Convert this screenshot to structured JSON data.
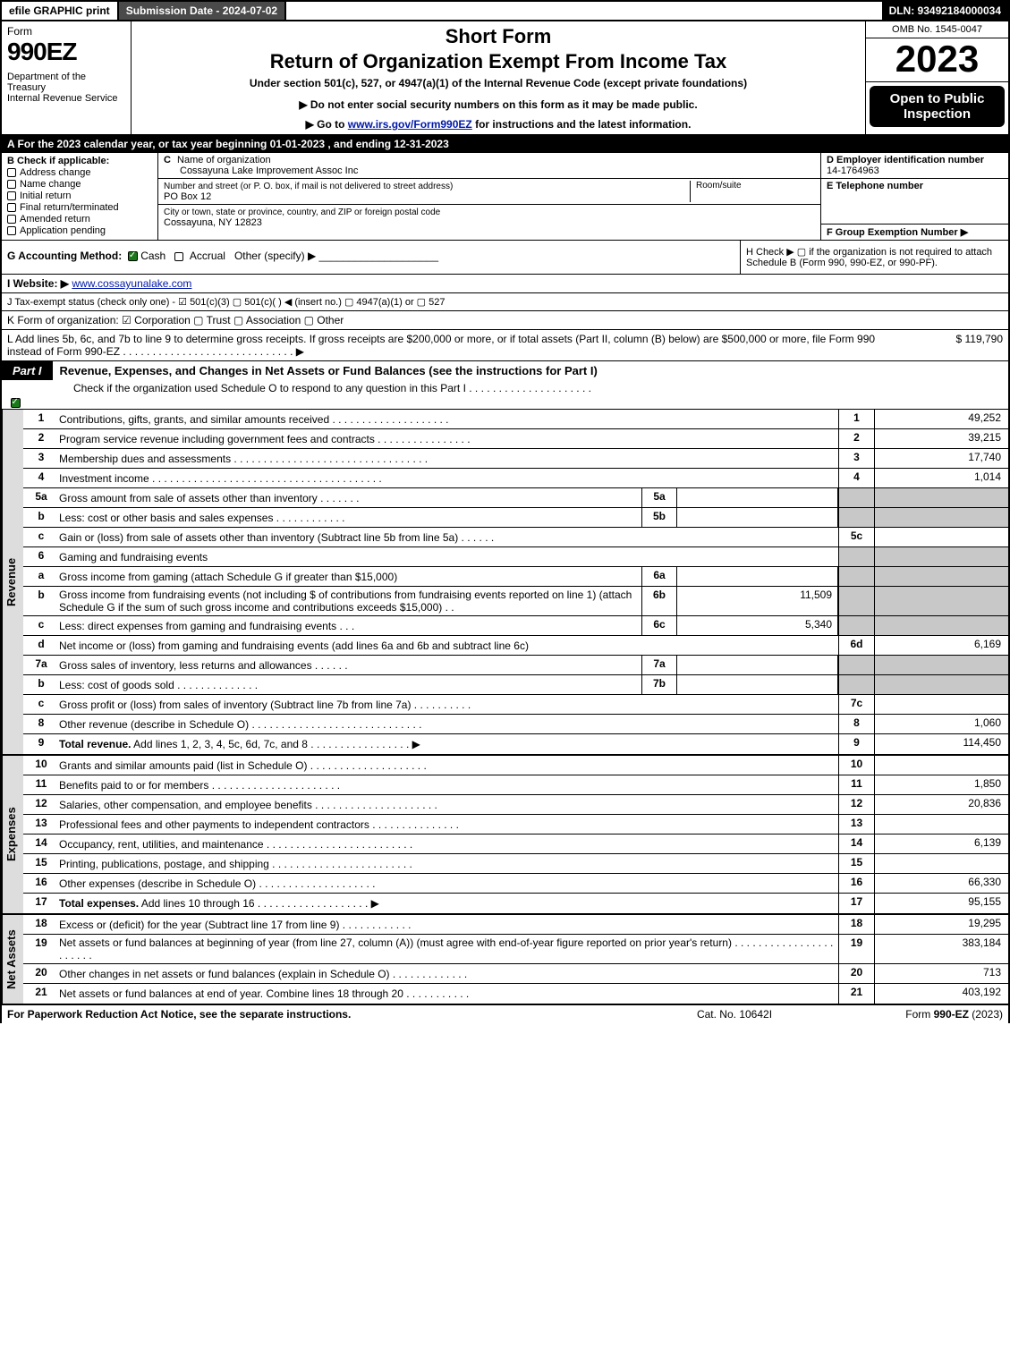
{
  "topbar": {
    "efile": "efile GRAPHIC print",
    "submission": "Submission Date - 2024-07-02",
    "dln": "DLN: 93492184000034"
  },
  "header": {
    "formword": "Form",
    "formnum": "990EZ",
    "dept": "Department of the Treasury\nInternal Revenue Service",
    "short": "Short Form",
    "ret": "Return of Organization Exempt From Income Tax",
    "under": "Under section 501(c), 527, or 4947(a)(1) of the Internal Revenue Code (except private foundations)",
    "donot": "▶ Do not enter social security numbers on this form as it may be made public.",
    "goto_pre": "▶ Go to ",
    "goto_link": "www.irs.gov/Form990EZ",
    "goto_post": " for instructions and the latest information.",
    "omb": "OMB No. 1545-0047",
    "year": "2023",
    "opento": "Open to Public Inspection"
  },
  "row_a": "A  For the 2023 calendar year, or tax year beginning 01-01-2023 , and ending 12-31-2023",
  "col_b": {
    "hdr": "B  Check if applicable:",
    "opts": [
      "Address change",
      "Name change",
      "Initial return",
      "Final return/terminated",
      "Amended return",
      "Application pending"
    ]
  },
  "col_c": {
    "c_lab": "C",
    "c_txt": "Name of organization",
    "c_val": "Cossayuna Lake Improvement Assoc Inc",
    "addr_lab": "Number and street (or P. O. box, if mail is not delivered to street address)",
    "addr_val": "PO Box 12",
    "room_lab": "Room/suite",
    "city_lab": "City or town, state or province, country, and ZIP or foreign postal code",
    "city_val": "Cossayuna, NY  12823"
  },
  "col_def": {
    "d_hdr": "D Employer identification number",
    "d_val": "14-1764963",
    "e_hdr": "E Telephone number",
    "f_hdr": "F Group Exemption Number   ▶"
  },
  "row_g": {
    "label": "G Accounting Method:",
    "cash": "Cash",
    "accrual": "Accrual",
    "other": "Other (specify) ▶",
    "underline": "____________________"
  },
  "row_h": "H  Check ▶  ▢  if the organization is not required to attach Schedule B (Form 990, 990-EZ, or 990-PF).",
  "row_i_lab": "I Website: ▶",
  "row_i_link": "www.cossayunalake.com",
  "row_j": "J Tax-exempt status (check only one) -  ☑ 501(c)(3)  ▢ 501(c)(  ) ◀ (insert no.)  ▢ 4947(a)(1) or  ▢ 527",
  "row_k": "K Form of organization:   ☑ Corporation   ▢ Trust   ▢ Association   ▢ Other",
  "row_l": {
    "txt": "L Add lines 5b, 6c, and 7b to line 9 to determine gross receipts. If gross receipts are $200,000 or more, or if total assets (Part II, column (B) below) are $500,000 or more, file Form 990 instead of Form 990-EZ . . . . . . . . . . . . . . . . . . . . . . . . . . . . . ▶",
    "val": "$ 119,790"
  },
  "part1": {
    "tab": "Part I",
    "title": "Revenue, Expenses, and Changes in Net Assets or Fund Balances (see the instructions for Part I)",
    "sub": "Check if the organization used Schedule O to respond to any question in this Part I . . . . . . . . . . . . . . . . . . . . ."
  },
  "revenue_label": "Revenue",
  "revenue_lines": [
    {
      "n": "1",
      "d": "Contributions, gifts, grants, and similar amounts received . . . . . . . . . . . . . . . . . . . .",
      "rn": "1",
      "rv": "49,252"
    },
    {
      "n": "2",
      "d": "Program service revenue including government fees and contracts . . . . . . . . . . . . . . . .",
      "rn": "2",
      "rv": "39,215"
    },
    {
      "n": "3",
      "d": "Membership dues and assessments . . . . . . . . . . . . . . . . . . . . . . . . . . . . . . . . .",
      "rn": "3",
      "rv": "17,740"
    },
    {
      "n": "4",
      "d": "Investment income . . . . . . . . . . . . . . . . . . . . . . . . . . . . . . . . . . . . . . .",
      "rn": "4",
      "rv": "1,014"
    },
    {
      "n": "5a",
      "d": "Gross amount from sale of assets other than inventory . . . . . . .",
      "mn": "5a",
      "mv": "",
      "grey": true
    },
    {
      "n": "b",
      "d": "Less: cost or other basis and sales expenses . . . . . . . . . . . .",
      "mn": "5b",
      "mv": "",
      "grey": true
    },
    {
      "n": "c",
      "d": "Gain or (loss) from sale of assets other than inventory (Subtract line 5b from line 5a) . . . . . .",
      "rn": "5c",
      "rv": ""
    },
    {
      "n": "6",
      "d": "Gaming and fundraising events",
      "noR": true
    },
    {
      "n": "a",
      "d": "Gross income from gaming (attach Schedule G if greater than $15,000)",
      "mn": "6a",
      "mv": "",
      "grey": true
    },
    {
      "n": "b",
      "d": "Gross income from fundraising events (not including $                    of contributions from fundraising events reported on line 1) (attach Schedule G if the sum of such gross income and contributions exceeds $15,000)   .   .",
      "mn": "6b",
      "mv": "11,509",
      "grey": true,
      "wrap": true
    },
    {
      "n": "c",
      "d": "Less: direct expenses from gaming and fundraising events   .   .   .",
      "mn": "6c",
      "mv": "5,340",
      "grey": true
    },
    {
      "n": "d",
      "d": "Net income or (loss) from gaming and fundraising events (add lines 6a and 6b and subtract line 6c)",
      "rn": "6d",
      "rv": "6,169"
    },
    {
      "n": "7a",
      "d": "Gross sales of inventory, less returns and allowances . . . . . .",
      "mn": "7a",
      "mv": "",
      "grey": true
    },
    {
      "n": "b",
      "d": "Less: cost of goods sold       .   .   .   .   .   .   .   .   .   .   .   .   .   .",
      "mn": "7b",
      "mv": "",
      "grey": true
    },
    {
      "n": "c",
      "d": "Gross profit or (loss) from sales of inventory (Subtract line 7b from line 7a) . . . . . . . . . .",
      "rn": "7c",
      "rv": ""
    },
    {
      "n": "8",
      "d": "Other revenue (describe in Schedule O) . . . . . . . . . . . . . . . . . . . . . . . . . . . . .",
      "rn": "8",
      "rv": "1,060"
    },
    {
      "n": "9",
      "d": "Total revenue. Add lines 1, 2, 3, 4, 5c, 6d, 7c, and 8  .  .  .  .  .  .  .  .  .  .  .  .  .  .  .  .  .  ▶",
      "rn": "9",
      "rv": "114,450",
      "bold": true
    }
  ],
  "expenses_label": "Expenses",
  "expenses_lines": [
    {
      "n": "10",
      "d": "Grants and similar amounts paid (list in Schedule O) . . . . . . . . . . . . . . . . . . . .",
      "rn": "10",
      "rv": ""
    },
    {
      "n": "11",
      "d": "Benefits paid to or for members      .   .   .   .   .   .   .   .   .   .   .   .   .   .   .   .   .   .   .   .   .   .",
      "rn": "11",
      "rv": "1,850"
    },
    {
      "n": "12",
      "d": "Salaries, other compensation, and employee benefits . . . . . . . . . . . . . . . . . . . . .",
      "rn": "12",
      "rv": "20,836"
    },
    {
      "n": "13",
      "d": "Professional fees and other payments to independent contractors . . . . . . . . . . . . . . .",
      "rn": "13",
      "rv": ""
    },
    {
      "n": "14",
      "d": "Occupancy, rent, utilities, and maintenance . . . . . . . . . . . . . . . . . . . . . . . . .",
      "rn": "14",
      "rv": "6,139"
    },
    {
      "n": "15",
      "d": "Printing, publications, postage, and shipping . . . . . . . . . . . . . . . . . . . . . . . .",
      "rn": "15",
      "rv": ""
    },
    {
      "n": "16",
      "d": "Other expenses (describe in Schedule O)     .   .   .   .   .   .   .   .   .   .   .   .   .   .   .   .   .   .   .   .",
      "rn": "16",
      "rv": "66,330"
    },
    {
      "n": "17",
      "d": "Total expenses. Add lines 10 through 16     .   .   .   .   .   .   .   .   .   .   .   .   .   .   .   .   .   .   .  ▶",
      "rn": "17",
      "rv": "95,155",
      "bold": true
    }
  ],
  "netassets_label": "Net Assets",
  "netassets_lines": [
    {
      "n": "18",
      "d": "Excess or (deficit) for the year (Subtract line 17 from line 9)       .   .   .   .   .   .   .   .   .   .   .   .",
      "rn": "18",
      "rv": "19,295"
    },
    {
      "n": "19",
      "d": "Net assets or fund balances at beginning of year (from line 27, column (A)) (must agree with end-of-year figure reported on prior year's return) . . . . . . . . . . . . . . . . . . . . . . .",
      "rn": "19",
      "rv": "383,184",
      "wrap": true
    },
    {
      "n": "20",
      "d": "Other changes in net assets or fund balances (explain in Schedule O) . . . . . . . . . . . . .",
      "rn": "20",
      "rv": "713"
    },
    {
      "n": "21",
      "d": "Net assets or fund balances at end of year. Combine lines 18 through 20 . . . . . . . . . . .",
      "rn": "21",
      "rv": "403,192"
    }
  ],
  "footer": {
    "l": "For Paperwork Reduction Act Notice, see the separate instructions.",
    "c": "Cat. No. 10642I",
    "r_pre": "Form ",
    "r_form": "990-EZ",
    "r_post": " (2023)"
  },
  "colors": {
    "black": "#000000",
    "darkgrey": "#4a4a4a",
    "lightgrey": "#c8c8c8",
    "green_check": "#1a7a1a",
    "link": "#0018a8",
    "bg": "#ffffff",
    "vlabel_bg": "#dddddd"
  }
}
